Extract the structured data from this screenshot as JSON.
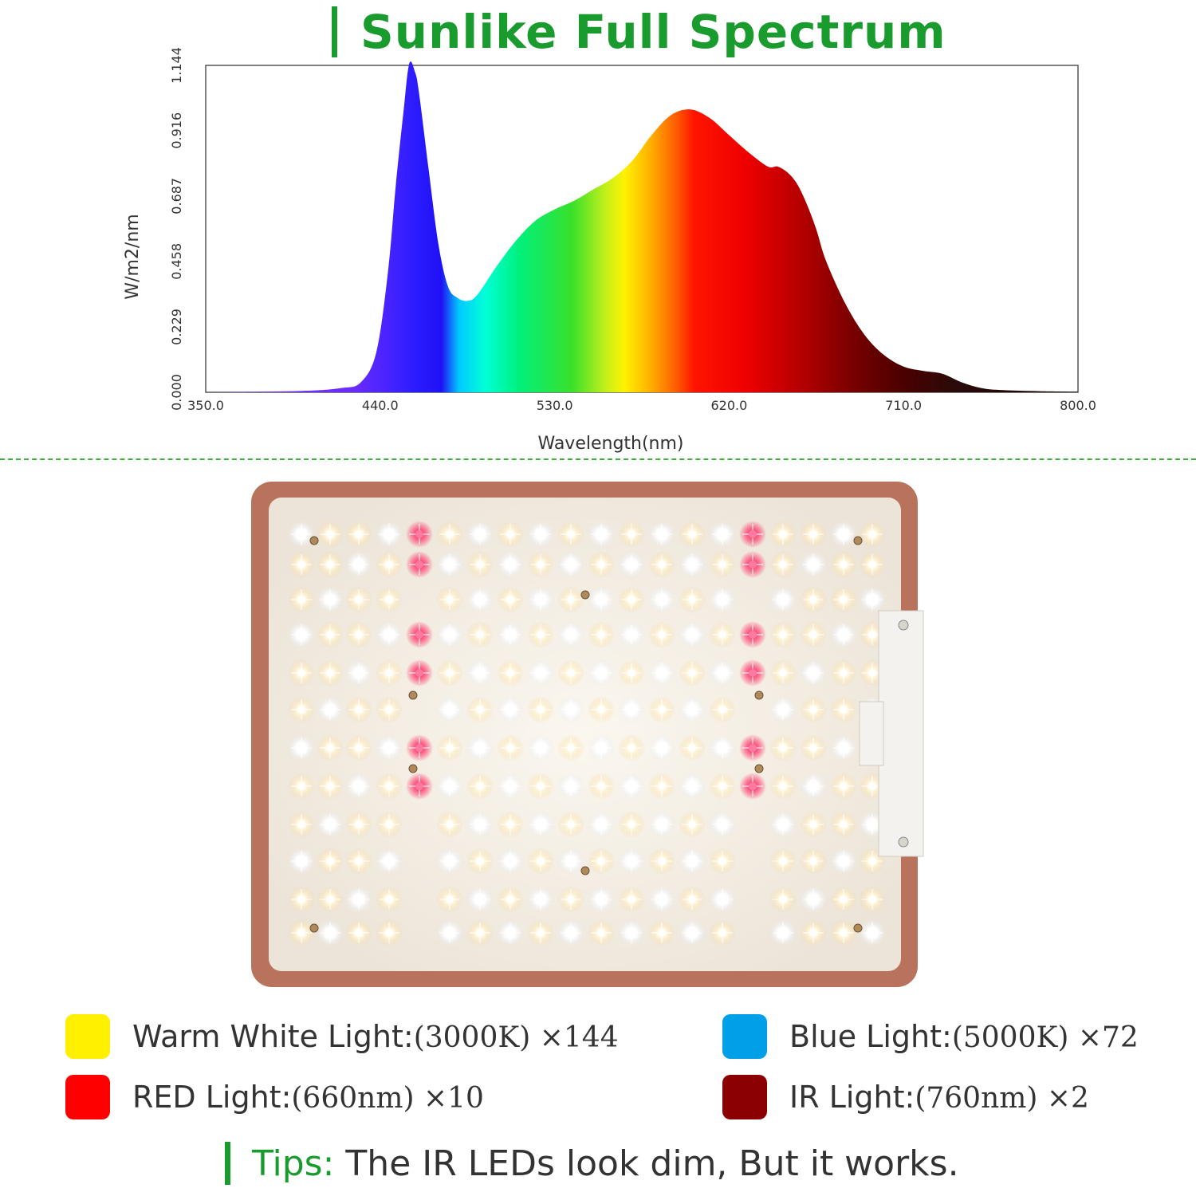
{
  "header": {
    "title": "Sunlike Full Spectrum"
  },
  "chart_data": {
    "type": "area",
    "title": "Sunlike Full Spectrum",
    "xlabel": "Wavelength(nm)",
    "ylabel": "W/m2/nm",
    "xlim": [
      350.0,
      800.0
    ],
    "ylim": [
      0.0,
      1.144
    ],
    "x_ticks": [
      "350.0",
      "440.0",
      "530.0",
      "620.0",
      "710.0",
      "800.0"
    ],
    "y_ticks": [
      "0.000",
      "0.229",
      "0.458",
      "0.687",
      "0.916",
      "1.144"
    ],
    "x": [
      350,
      400,
      420,
      430,
      438,
      444,
      448,
      452,
      455,
      458,
      460,
      465,
      470,
      475,
      480,
      485,
      490,
      500,
      510,
      520,
      530,
      540,
      550,
      560,
      570,
      580,
      590,
      600,
      610,
      620,
      630,
      640,
      645,
      650,
      655,
      660,
      665,
      670,
      680,
      690,
      700,
      710,
      720,
      730,
      740,
      750,
      760,
      780,
      800
    ],
    "series": [
      {
        "name": "Spectral irradiance",
        "values": [
          0.0,
          0.005,
          0.015,
          0.035,
          0.14,
          0.42,
          0.72,
          0.98,
          1.15,
          1.12,
          1.05,
          0.78,
          0.52,
          0.37,
          0.33,
          0.32,
          0.34,
          0.44,
          0.53,
          0.6,
          0.64,
          0.67,
          0.71,
          0.75,
          0.81,
          0.9,
          0.97,
          0.99,
          0.96,
          0.9,
          0.84,
          0.79,
          0.79,
          0.77,
          0.73,
          0.66,
          0.57,
          0.46,
          0.31,
          0.2,
          0.13,
          0.09,
          0.075,
          0.065,
          0.035,
          0.015,
          0.008,
          0.004,
          0.002
        ]
      }
    ]
  },
  "panel": {
    "red_led_rows": [
      0,
      1,
      3,
      4,
      6,
      7
    ],
    "screw_icons": "mounting-screw-icon"
  },
  "legend": [
    {
      "label": "Warm White Light:",
      "value": "(3000K) ×144",
      "color": "#fff000"
    },
    {
      "label": "Blue Light:",
      "value": "(5000K) ×72",
      "color": "#00a0e9"
    },
    {
      "label": "RED Light:",
      "value": "(660nm) ×10",
      "color": "#ff0000"
    },
    {
      "label": "IR Light:",
      "value": "(760nm) ×2",
      "color": "#8b0000"
    }
  ],
  "tips": {
    "key": "Tips:",
    "text": " The IR LEDs look dim, But it works."
  }
}
